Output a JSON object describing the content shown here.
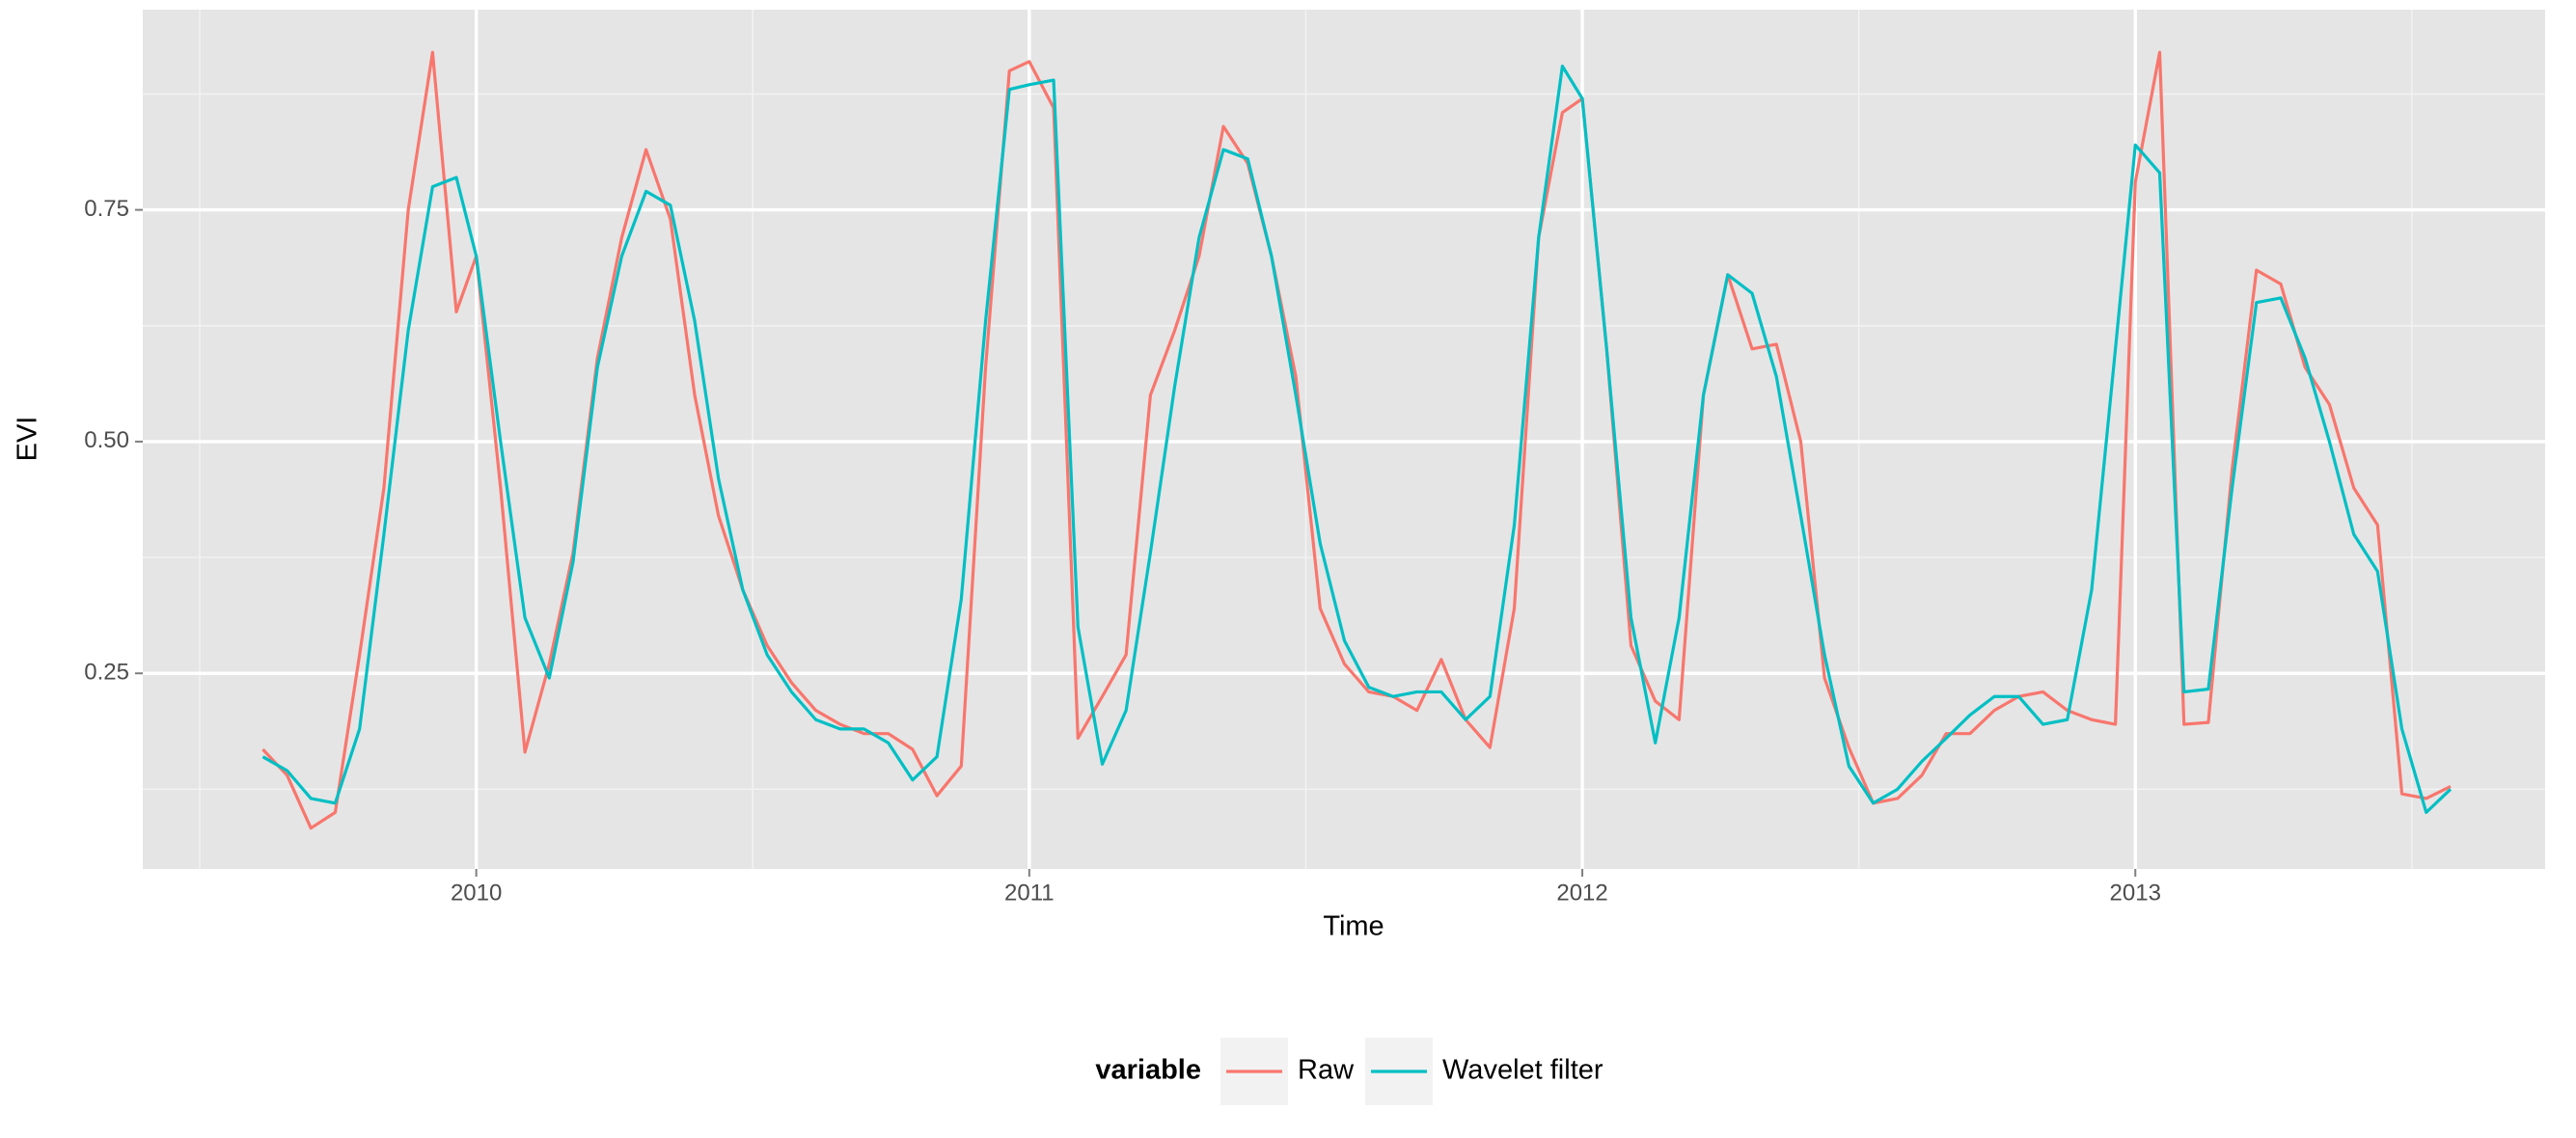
{
  "chart_data": {
    "type": "line",
    "x_label": "Time",
    "y_label": "EVI",
    "legend_title": "variable",
    "legend_position": "bottom",
    "grid": true,
    "xlim": [
      2009.397,
      2013.741
    ],
    "ylim": [
      0.039,
      0.966
    ],
    "xticks": [
      2010,
      2011,
      2012,
      2013
    ],
    "yticks": [
      0.25,
      {
        "value": 0.5,
        "label": "0.50"
      },
      0.75
    ],
    "x": [
      2009.614,
      2009.658,
      2009.701,
      2009.745,
      2009.789,
      2009.833,
      2009.877,
      2009.921,
      2009.964,
      2010,
      2010.044,
      2010.088,
      2010.132,
      2010.175,
      2010.219,
      2010.263,
      2010.307,
      2010.351,
      2010.395,
      2010.438,
      2010.482,
      2010.526,
      2010.57,
      2010.614,
      2010.658,
      2010.701,
      2010.745,
      2010.789,
      2010.833,
      2010.877,
      2010.921,
      2010.964,
      2011,
      2011.044,
      2011.088,
      2011.132,
      2011.175,
      2011.219,
      2011.263,
      2011.307,
      2011.351,
      2011.395,
      2011.438,
      2011.482,
      2011.526,
      2011.57,
      2011.614,
      2011.658,
      2011.701,
      2011.745,
      2011.789,
      2011.833,
      2011.877,
      2011.921,
      2011.964,
      2012,
      2012.044,
      2012.088,
      2012.132,
      2012.175,
      2012.219,
      2012.263,
      2012.307,
      2012.351,
      2012.395,
      2012.438,
      2012.482,
      2012.526,
      2012.57,
      2012.614,
      2012.658,
      2012.701,
      2012.745,
      2012.789,
      2012.833,
      2012.877,
      2012.921,
      2012.964,
      2013,
      2013.044,
      2013.088,
      2013.132,
      2013.175,
      2013.219,
      2013.263,
      2013.307,
      2013.351,
      2013.395,
      2013.438,
      2013.482,
      2013.526,
      2013.57
    ],
    "series": [
      {
        "name": "Raw",
        "color": "#f8766d",
        "values": [
          0.168,
          0.14,
          0.083,
          0.1,
          0.27,
          0.45,
          0.75,
          0.92,
          0.64,
          0.7,
          0.45,
          0.165,
          0.26,
          0.38,
          0.59,
          0.72,
          0.815,
          0.74,
          0.55,
          0.42,
          0.34,
          0.28,
          0.24,
          0.21,
          0.195,
          0.185,
          0.185,
          0.168,
          0.118,
          0.15,
          0.58,
          0.9,
          0.91,
          0.86,
          0.18,
          0.225,
          0.27,
          0.55,
          0.62,
          0.7,
          0.84,
          0.8,
          0.7,
          0.57,
          0.32,
          0.26,
          0.23,
          0.225,
          0.21,
          0.265,
          0.2,
          0.17,
          0.32,
          0.72,
          0.855,
          0.87,
          0.6,
          0.28,
          0.22,
          0.2,
          0.55,
          0.68,
          0.6,
          0.605,
          0.5,
          0.245,
          0.17,
          0.11,
          0.115,
          0.14,
          0.185,
          0.185,
          0.21,
          0.225,
          0.23,
          0.21,
          0.2,
          0.195,
          0.78,
          0.92,
          0.195,
          0.197,
          0.47,
          0.685,
          0.67,
          0.58,
          0.54,
          0.45,
          0.41,
          0.12,
          0.115,
          0.128
        ]
      },
      {
        "name": "Wavelet filter",
        "color": "#00bfc4",
        "values": [
          0.16,
          0.145,
          0.115,
          0.11,
          0.19,
          0.4,
          0.62,
          0.775,
          0.785,
          0.7,
          0.5,
          0.31,
          0.245,
          0.37,
          0.58,
          0.7,
          0.77,
          0.755,
          0.63,
          0.46,
          0.34,
          0.27,
          0.23,
          0.2,
          0.19,
          0.19,
          0.175,
          0.135,
          0.16,
          0.33,
          0.63,
          0.88,
          0.885,
          0.89,
          0.3,
          0.152,
          0.21,
          0.38,
          0.56,
          0.72,
          0.815,
          0.805,
          0.7,
          0.55,
          0.39,
          0.285,
          0.235,
          0.225,
          0.23,
          0.23,
          0.2,
          0.225,
          0.41,
          0.72,
          0.905,
          0.87,
          0.6,
          0.31,
          0.175,
          0.31,
          0.55,
          0.68,
          0.66,
          0.57,
          0.42,
          0.27,
          0.15,
          0.11,
          0.125,
          0.155,
          0.18,
          0.205,
          0.225,
          0.225,
          0.195,
          0.2,
          0.34,
          0.6,
          0.82,
          0.79,
          0.23,
          0.233,
          0.45,
          0.65,
          0.655,
          0.59,
          0.5,
          0.4,
          0.36,
          0.19,
          0.1,
          0.125
        ]
      }
    ]
  }
}
